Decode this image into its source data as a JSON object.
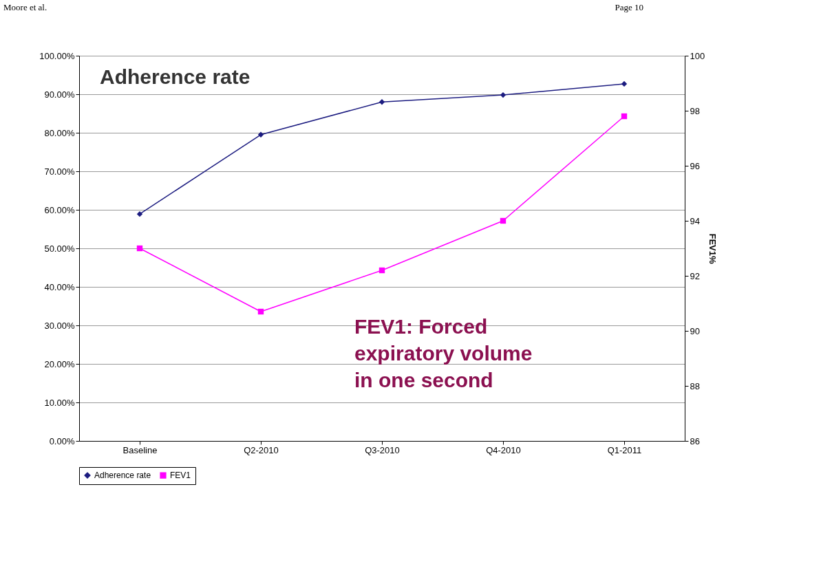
{
  "chart_data": {
    "type": "line",
    "categories": [
      "Baseline",
      "Q2-2010",
      "Q3-2010",
      "Q4-2010",
      "Q1-2011"
    ],
    "series": [
      {
        "name": "Adherence rate",
        "color": "#1c1c80",
        "marker": "diamond",
        "values": [
          58.9,
          79.5,
          88.0,
          89.8,
          92.7
        ]
      },
      {
        "name": "FEV1",
        "color": "#ff00ff",
        "marker": "square",
        "axis": "y2",
        "values": [
          93.0,
          90.7,
          92.2,
          94.0,
          97.8
        ]
      }
    ],
    "ylim": [
      0,
      100
    ],
    "yticks": [
      {
        "value": 0,
        "label": "0.00%"
      },
      {
        "value": 10,
        "label": "10.00%"
      },
      {
        "value": 20,
        "label": "20.00%"
      },
      {
        "value": 30,
        "label": "30.00%"
      },
      {
        "value": 40,
        "label": "40.00%"
      },
      {
        "value": 50,
        "label": "50.00%"
      },
      {
        "value": 60,
        "label": "60.00%"
      },
      {
        "value": 70,
        "label": "70.00%"
      },
      {
        "value": 80,
        "label": "80.00%"
      },
      {
        "value": 90,
        "label": "90.00%"
      },
      {
        "value": 100,
        "label": "100.00%"
      }
    ],
    "y2lim": [
      86,
      100
    ],
    "y2ticks": [
      86,
      88,
      90,
      92,
      94,
      96,
      98,
      100
    ],
    "y2label": "FEV1%",
    "grid": "y",
    "legend": "bottom",
    "line_style": "solid",
    "annotations": [
      "Moore et al.",
      "Page 10",
      "Adherence rate",
      "FEV1: Forced\nexpiratory volume\nin one second"
    ]
  }
}
